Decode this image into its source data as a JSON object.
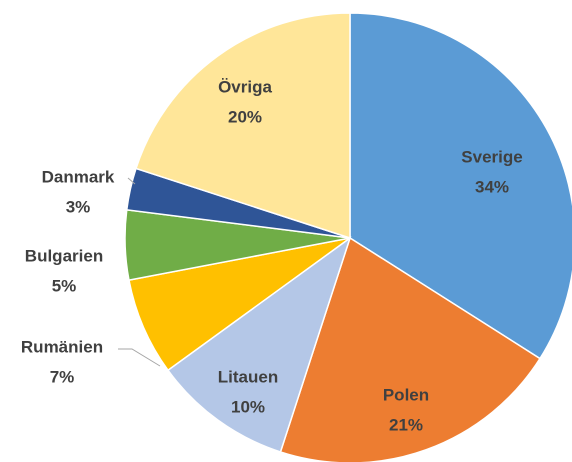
{
  "chart_data": {
    "type": "pie",
    "categories": [
      "Sverige",
      "Polen",
      "Litauen",
      "Rumänien",
      "Bulgarien",
      "Danmark",
      "Övriga"
    ],
    "values": [
      34,
      21,
      10,
      7,
      5,
      3,
      20
    ],
    "value_labels": [
      "34%",
      "21%",
      "10%",
      "7%",
      "5%",
      "3%",
      "20%"
    ],
    "colors": [
      "#5b9bd5",
      "#ed7d31",
      "#b4c7e7",
      "#ffc000",
      "#70ad47",
      "#2f5597",
      "#ffe699"
    ]
  }
}
